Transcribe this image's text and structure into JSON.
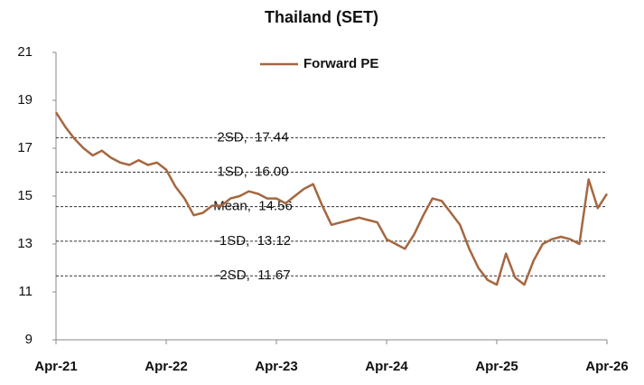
{
  "chart_data": {
    "type": "line",
    "title": "Thailand (SET)",
    "x": [
      "2021-04",
      "2021-05",
      "2021-06",
      "2021-07",
      "2021-08",
      "2021-09",
      "2021-10",
      "2021-11",
      "2021-12",
      "2022-01",
      "2022-02",
      "2022-03",
      "2022-04",
      "2022-05",
      "2022-06",
      "2022-07",
      "2022-08",
      "2022-09",
      "2022-10",
      "2022-11",
      "2022-12",
      "2023-01",
      "2023-02",
      "2023-03",
      "2023-04",
      "2023-05",
      "2023-06",
      "2023-07",
      "2023-08",
      "2023-09",
      "2023-10",
      "2023-11",
      "2023-12",
      "2024-01",
      "2024-02",
      "2024-03",
      "2024-04",
      "2024-05",
      "2024-06",
      "2024-07",
      "2024-08",
      "2024-09",
      "2024-10",
      "2024-11",
      "2024-12",
      "2025-01",
      "2025-02",
      "2025-03",
      "2025-04",
      "2025-05",
      "2025-06",
      "2025-07",
      "2025-08",
      "2025-09",
      "2025-10",
      "2025-11",
      "2025-12",
      "2026-01",
      "2026-02",
      "2026-03",
      "2026-04"
    ],
    "series": [
      {
        "name": "Forward PE",
        "color": "#a5673f",
        "values": [
          18.5,
          17.9,
          17.4,
          17.0,
          16.7,
          16.9,
          16.6,
          16.4,
          16.3,
          16.5,
          16.3,
          16.4,
          16.1,
          15.4,
          14.9,
          14.2,
          14.3,
          14.6,
          14.6,
          14.9,
          15.0,
          15.2,
          15.1,
          14.9,
          14.9,
          14.7,
          15.0,
          15.3,
          15.5,
          14.6,
          13.8,
          13.9,
          14.0,
          14.1,
          14.0,
          13.9,
          13.2,
          13.0,
          12.8,
          13.4,
          14.2,
          14.9,
          14.8,
          14.3,
          13.8,
          12.8,
          12.0,
          11.5,
          11.3,
          12.6,
          11.6,
          11.3,
          12.3,
          13.0,
          13.2,
          13.3,
          13.2,
          13.0,
          15.7,
          14.5,
          15.1
        ]
      }
    ],
    "bands": [
      {
        "label": "2SD,  17.44",
        "value": 17.44
      },
      {
        "label": "1SD,  16.00",
        "value": 16.0
      },
      {
        "label": "Mean,  14.56",
        "value": 14.56
      },
      {
        "label": "-1SD,  13.12",
        "value": 13.12
      },
      {
        "label": "-2SD,  11.67",
        "value": 11.67
      }
    ],
    "xlim": [
      "2021-04",
      "2026-04"
    ],
    "xticks": [
      {
        "value": "2021-04",
        "label": "Apr-21"
      },
      {
        "value": "2022-04",
        "label": "Apr-22"
      },
      {
        "value": "2023-04",
        "label": "Apr-23"
      },
      {
        "value": "2024-04",
        "label": "Apr-24"
      },
      {
        "value": "2025-04",
        "label": "Apr-25"
      },
      {
        "value": "2026-04",
        "label": "Apr-26"
      }
    ],
    "ylim": [
      9,
      21
    ],
    "yticks": [
      9,
      11,
      13,
      15,
      17,
      19,
      21
    ],
    "legend": "top"
  }
}
